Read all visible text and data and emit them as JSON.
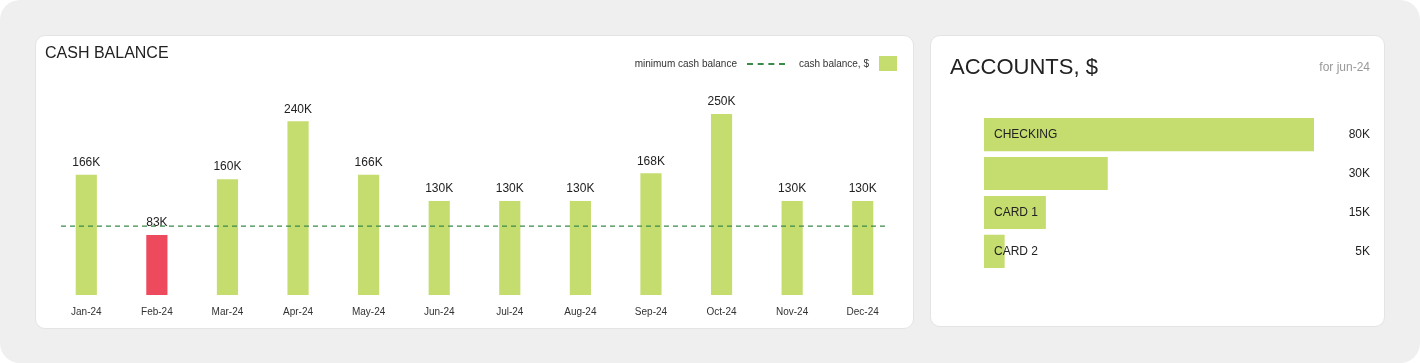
{
  "chart_data": [
    {
      "type": "bar",
      "title": "CASH BALANCE",
      "legend": "top right",
      "tick_labels": "x",
      "categories": [
        "Jan-24",
        "Feb-24",
        "Mar-24",
        "Apr-24",
        "May-24",
        "Jun-24",
        "Jul-24",
        "Aug-24",
        "Sep-24",
        "Oct-24",
        "Nov-24",
        "Dec-24"
      ],
      "series": [
        {
          "name": "cash balance, $",
          "color": "#c5dc6e",
          "colors": [
            "#c5dc6e",
            "#ee4a5e",
            "#c5dc6e",
            "#c5dc6e",
            "#c5dc6e",
            "#c5dc6e",
            "#c5dc6e",
            "#c5dc6e",
            "#c5dc6e",
            "#c5dc6e",
            "#c5dc6e",
            "#c5dc6e"
          ],
          "values": [
            166000,
            83000,
            160000,
            240000,
            166000,
            130000,
            130000,
            130000,
            168000,
            250000,
            130000,
            130000
          ],
          "value_labels": [
            "166K",
            "83K",
            "160K",
            "240K",
            "166K",
            "130K",
            "130K",
            "130K",
            "168K",
            "250K",
            "130K",
            "130K"
          ]
        }
      ],
      "ref_lines": [
        {
          "axis": "y",
          "value": 95000,
          "label": "minimum cash balance",
          "color": "#3a8a4a",
          "line_style": "dashed"
        }
      ]
    },
    {
      "type": "bar",
      "title": "ACCOUNTS, $",
      "subtitle": "for jun-24",
      "orientation": "horizontal",
      "tick_labels": "y",
      "categories": [
        "CHECKING",
        null,
        "CARD 1",
        "CARD 2"
      ],
      "color": "#c5dc6e",
      "values": [
        80000,
        30000,
        15000,
        5000
      ],
      "value_labels": [
        "80K",
        "30K",
        "15K",
        "5K"
      ]
    }
  ]
}
